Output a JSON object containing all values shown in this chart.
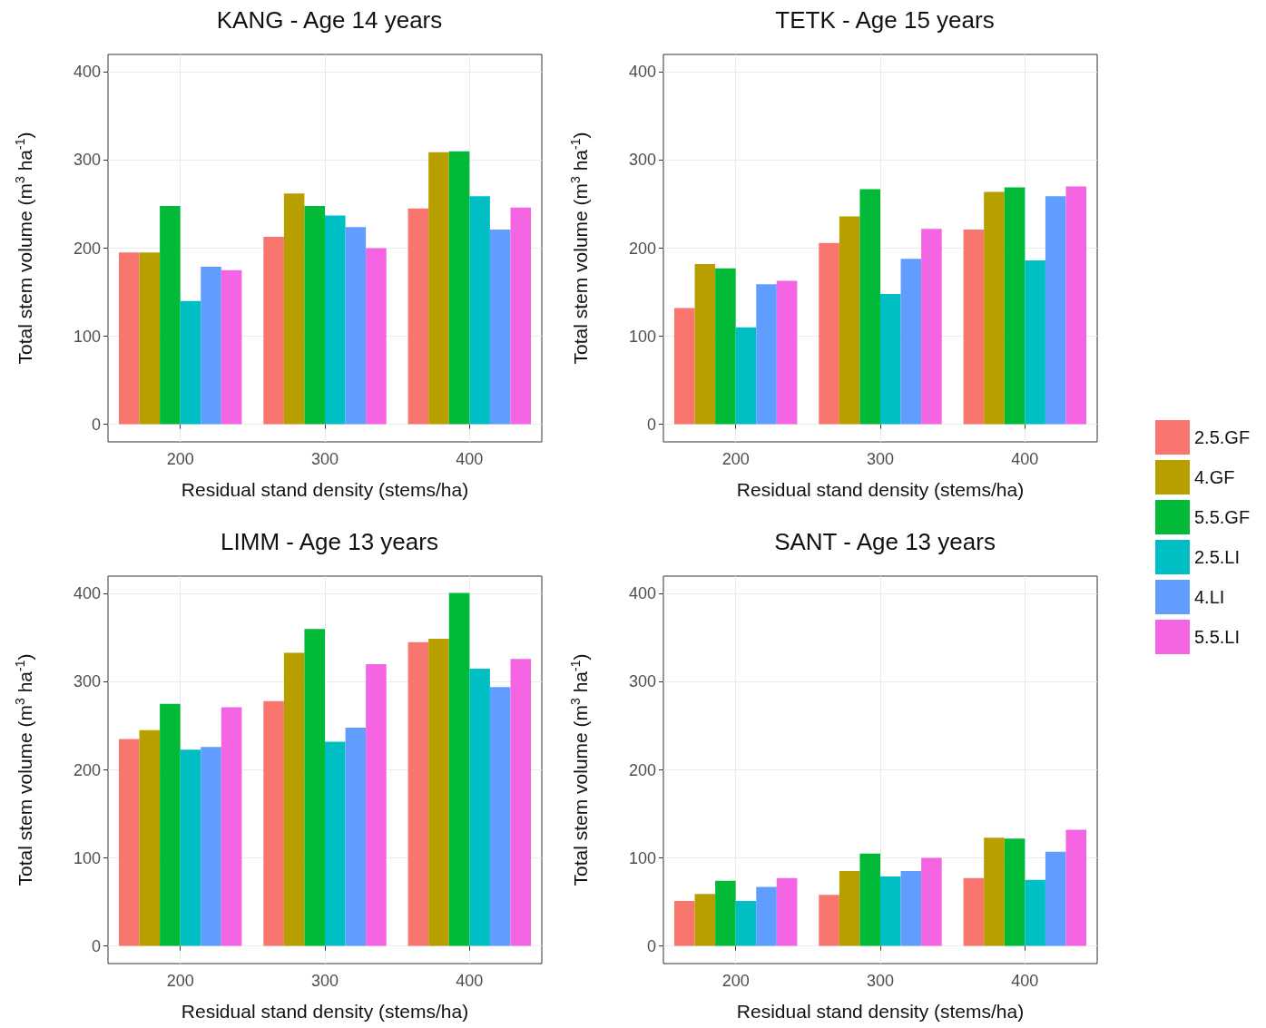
{
  "chart_data": [
    {
      "type": "bar",
      "title": "KANG - Age 14 years",
      "xlabel": "Residual stand density (stems/ha)",
      "ylabel": "Total stem volume (m$^{3}$ ha$^{-1}$)",
      "categories": [
        "200",
        "300",
        "400"
      ],
      "ylim": [
        -20,
        420
      ],
      "yticks": [
        0,
        100,
        200,
        300,
        400
      ],
      "grid": true,
      "series": [
        {
          "color": "#f8766d",
          "values": [
            195,
            213,
            245
          ]
        },
        {
          "color": "#b79f00",
          "values": [
            195,
            262,
            309
          ]
        },
        {
          "color": "#00ba38",
          "values": [
            248,
            248,
            310
          ]
        },
        {
          "color": "#00bfc4",
          "values": [
            140,
            237,
            259
          ]
        },
        {
          "color": "#619cff",
          "values": [
            179,
            224,
            221
          ]
        },
        {
          "color": "#f564e3",
          "values": [
            175,
            200,
            246
          ]
        }
      ]
    },
    {
      "type": "bar",
      "title": "TETK - Age 15 years",
      "xlabel": "Residual stand density (stems/ha)",
      "ylabel": "Total stem volume (m$^{3}$ ha$^{-1}$)",
      "categories": [
        "200",
        "300",
        "400"
      ],
      "ylim": [
        -20,
        420
      ],
      "yticks": [
        0,
        100,
        200,
        300,
        400
      ],
      "grid": true,
      "legend": "right",
      "series": [
        {
          "name": "2.5.GF",
          "color": "#f8766d",
          "values": [
            132,
            206,
            221
          ]
        },
        {
          "name": "4.GF",
          "color": "#b79f00",
          "values": [
            182,
            236,
            264
          ]
        },
        {
          "name": "5.5.GF",
          "color": "#00ba38",
          "values": [
            177,
            267,
            269
          ]
        },
        {
          "name": "2.5.LI",
          "color": "#00bfc4",
          "values": [
            110,
            148,
            186
          ]
        },
        {
          "name": "4.LI",
          "color": "#619cff",
          "values": [
            159,
            188,
            259
          ]
        },
        {
          "name": "5.5.LI",
          "color": "#f564e3",
          "values": [
            163,
            222,
            270
          ]
        }
      ]
    },
    {
      "type": "bar",
      "title": "LIMM - Age 13 years",
      "xlabel": "Residual stand density (stems/ha)",
      "ylabel": "Total stem volume (m$^{3}$ ha$^{-1}$)",
      "categories": [
        "200",
        "300",
        "400"
      ],
      "ylim": [
        -20,
        420
      ],
      "yticks": [
        0,
        100,
        200,
        300,
        400
      ],
      "grid": true,
      "series": [
        {
          "color": "#f8766d",
          "values": [
            235,
            278,
            345
          ]
        },
        {
          "color": "#b79f00",
          "values": [
            245,
            333,
            349
          ]
        },
        {
          "color": "#00ba38",
          "values": [
            275,
            360,
            401
          ]
        },
        {
          "color": "#00bfc4",
          "values": [
            223,
            232,
            315
          ]
        },
        {
          "color": "#619cff",
          "values": [
            226,
            248,
            294
          ]
        },
        {
          "color": "#f564e3",
          "values": [
            271,
            320,
            326
          ]
        }
      ]
    },
    {
      "type": "bar",
      "title": "SANT - Age 13 years",
      "xlabel": "Residual stand density (stems/ha)",
      "ylabel": "Total stem volume (m$^{3}$ ha$^{-1}$)",
      "categories": [
        "200",
        "300",
        "400"
      ],
      "ylim": [
        -20,
        420
      ],
      "yticks": [
        0,
        100,
        200,
        300,
        400
      ],
      "grid": true,
      "series": [
        {
          "color": "#f8766d",
          "values": [
            51,
            58,
            77
          ]
        },
        {
          "color": "#b79f00",
          "values": [
            59,
            85,
            123
          ]
        },
        {
          "color": "#00ba38",
          "values": [
            74,
            105,
            122
          ]
        },
        {
          "color": "#00bfc4",
          "values": [
            51,
            79,
            75
          ]
        },
        {
          "color": "#619cff",
          "values": [
            67,
            85,
            107
          ]
        },
        {
          "color": "#f564e3",
          "values": [
            77,
            100,
            132
          ]
        }
      ]
    }
  ]
}
